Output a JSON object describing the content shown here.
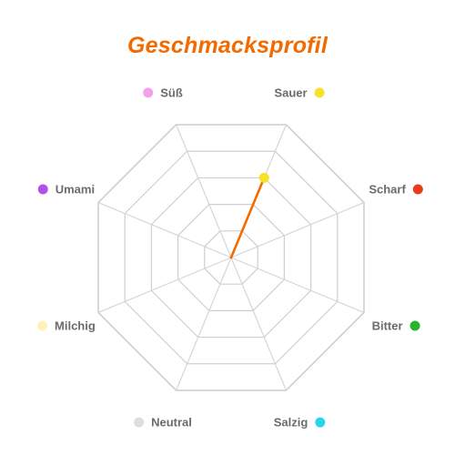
{
  "chart_data": {
    "type": "radar",
    "title": "Geschmacksprofil",
    "axes": [
      {
        "label": "Sauer",
        "color": "#f7e22a"
      },
      {
        "label": "Scharf",
        "color": "#ee3a1c"
      },
      {
        "label": "Bitter",
        "color": "#29b42f"
      },
      {
        "label": "Salzig",
        "color": "#2ad4ee"
      },
      {
        "label": "Neutral",
        "color": "#dedede"
      },
      {
        "label": "Milchig",
        "color": "#fff2b6"
      },
      {
        "label": "Umami",
        "color": "#b052e6"
      },
      {
        "label": "Süß",
        "color": "#f5a0ec"
      }
    ],
    "range": [
      0,
      5
    ],
    "rings": 5,
    "series": [
      {
        "color": "#f26a00",
        "values": [
          3,
          0,
          0,
          0,
          0,
          0,
          0,
          0
        ]
      }
    ],
    "grid": true,
    "legend": "none"
  }
}
